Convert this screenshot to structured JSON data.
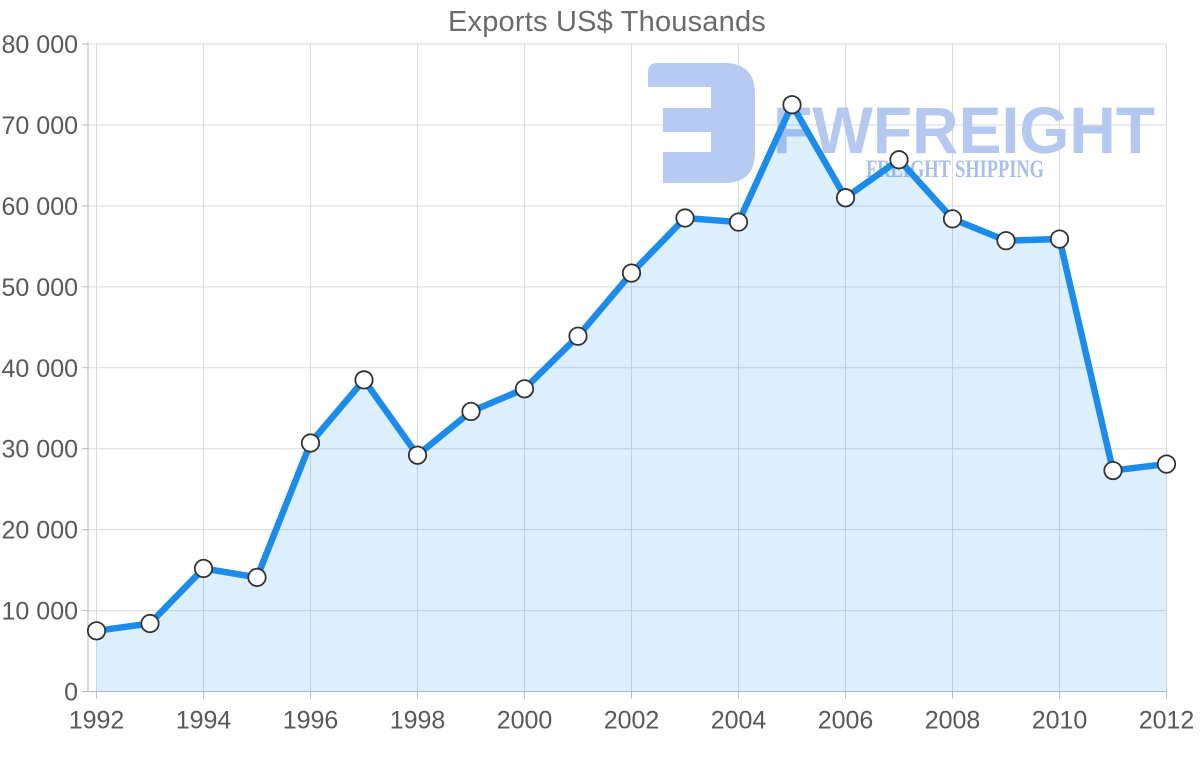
{
  "title": "Exports US$ Thousands",
  "watermark": {
    "icon": "fwfreight-logo-icon",
    "brand": "FWFREIGHT",
    "tagline": "FREIGHT SHIPPING",
    "icon_color": "#b7caf1",
    "brand_color": "#b4c8f0",
    "tagline_color": "#a9bfe9"
  },
  "chart_data": {
    "type": "area",
    "title": "Exports US$ Thousands",
    "series_name": "Exports US$ Thousands",
    "x": [
      1992,
      1993,
      1994,
      1995,
      1996,
      1997,
      1998,
      1999,
      2000,
      2001,
      2002,
      2003,
      2004,
      2005,
      2006,
      2007,
      2008,
      2009,
      2010,
      2011,
      2012
    ],
    "values": [
      7500,
      8400,
      15200,
      14100,
      30700,
      38500,
      29200,
      34600,
      37400,
      43900,
      51700,
      58500,
      58000,
      72500,
      61000,
      65700,
      58400,
      55700,
      55900,
      27300,
      28100
    ],
    "xlabel": "",
    "ylabel": "",
    "ylim": [
      0,
      80000
    ],
    "ytick_step": 10000,
    "ytick_labels": [
      "0",
      "10 000",
      "20 000",
      "30 000",
      "40 000",
      "50 000",
      "60 000",
      "70 000",
      "80 000"
    ],
    "xtick_labels": [
      "1992",
      "1994",
      "1996",
      "1998",
      "2000",
      "2002",
      "2004",
      "2006",
      "2008",
      "2010",
      "2012"
    ],
    "xtick_every": 2,
    "grid": true,
    "legend": "none",
    "marker_shape": "circle",
    "line_color": "#1b8ceb",
    "area_color": "rgba(27, 140, 235, 0.15)",
    "marker_fill": "#ffffff",
    "marker_stroke": "#333333",
    "grid_color": "#dadada",
    "axis_color": "#b9b9b9",
    "label_color": "#595959",
    "title_color": "#6b6b6b"
  }
}
